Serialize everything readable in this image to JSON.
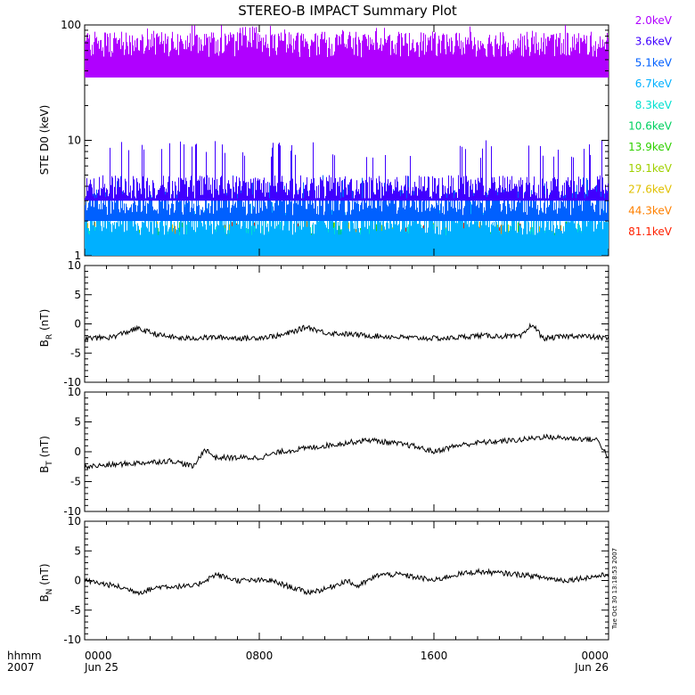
{
  "title": "STEREO-B IMPACT Summary Plot",
  "timestamp": "Tue Oct 30 13:18:53 2007",
  "colors": {
    "background": "#ffffff",
    "axes": "#000000",
    "line": "#000000"
  },
  "chart_data": [
    {
      "type": "line",
      "panel": "ste",
      "ylabel": "STE D0 (keV)",
      "yscale": "log",
      "ylim": [
        1,
        100
      ],
      "yticks": [
        "1",
        "10",
        "100"
      ],
      "legend_placement": "right",
      "series": [
        {
          "name": "2.0keV",
          "color": "#b000ff",
          "mean": 70,
          "min": 35,
          "max": 100
        },
        {
          "name": "3.6keV",
          "color": "#4000ff",
          "mean": 4,
          "min": 3,
          "max": 10
        },
        {
          "name": "5.1keV",
          "color": "#0060ff",
          "mean": 3,
          "min": 2,
          "max": 5
        },
        {
          "name": "6.7keV",
          "color": "#00b0ff",
          "mean": 2,
          "min": 1,
          "max": 3
        },
        {
          "name": "8.3keV",
          "color": "#00e0d0",
          "mean": 1.5,
          "min": 1,
          "max": 2
        },
        {
          "name": "10.6keV",
          "color": "#00d060",
          "mean": 1.3,
          "min": 1,
          "max": 2
        },
        {
          "name": "13.9keV",
          "color": "#30d000",
          "mean": 1.2,
          "min": 1,
          "max": 2
        },
        {
          "name": "19.1keV",
          "color": "#a0d000",
          "mean": 1.1,
          "min": 1,
          "max": 2
        },
        {
          "name": "27.6keV",
          "color": "#e0c000",
          "mean": 1.1,
          "min": 1,
          "max": 2
        },
        {
          "name": "44.3keV",
          "color": "#ff8000",
          "mean": 1.05,
          "min": 1,
          "max": 2
        },
        {
          "name": "81.1keV",
          "color": "#ff2000",
          "mean": 1.0,
          "min": 1,
          "max": 2
        }
      ]
    },
    {
      "type": "line",
      "panel": "br",
      "ylabel": "B",
      "ylabel_sub": "R",
      "ylabel_unit": " (nT)",
      "ylim": [
        -10,
        10
      ],
      "yticks": [
        "10",
        "5",
        "0",
        "-5",
        "-10"
      ],
      "x": [
        0,
        1.2,
        2.4,
        3.5,
        4.5,
        6,
        7.5,
        9,
        10.2,
        11,
        13,
        14,
        15,
        16.5,
        18,
        20,
        20.5,
        21,
        22.5,
        24
      ],
      "values": [
        -2.5,
        -2.3,
        -0.8,
        -2.0,
        -2.5,
        -2.3,
        -2.5,
        -2.0,
        -0.5,
        -1.5,
        -2.0,
        -2.2,
        -2.4,
        -2.5,
        -2.0,
        -2.2,
        0.0,
        -2.5,
        -2.0,
        -2.5
      ]
    },
    {
      "type": "line",
      "panel": "bt",
      "ylabel": "B",
      "ylabel_sub": "T",
      "ylabel_unit": " (nT)",
      "ylim": [
        -10,
        10
      ],
      "yticks": [
        "10",
        "5",
        "0",
        "-5",
        "-10"
      ],
      "x": [
        0,
        2,
        4,
        5,
        5.5,
        6,
        8,
        9,
        11,
        12,
        13,
        14,
        15,
        16,
        17,
        18,
        20,
        21,
        22,
        23.5,
        24
      ],
      "values": [
        -2.5,
        -2.0,
        -1.5,
        -2.5,
        0.5,
        -1.0,
        -1.0,
        0.0,
        1.0,
        1.5,
        2.0,
        1.5,
        1.0,
        0.0,
        1.0,
        1.5,
        2.0,
        2.5,
        2.3,
        2.0,
        -1.0
      ]
    },
    {
      "type": "line",
      "panel": "bn",
      "ylabel": "B",
      "ylabel_sub": "N",
      "ylabel_unit": " (nT)",
      "ylim": [
        -10,
        10
      ],
      "yticks": [
        "10",
        "5",
        "0",
        "-5",
        "-10"
      ],
      "x": [
        0,
        1.5,
        2.5,
        3.5,
        5,
        6,
        7,
        8.5,
        10.2,
        11,
        12,
        12.5,
        13.5,
        14.5,
        16,
        17,
        18,
        20,
        22,
        24
      ],
      "values": [
        0.0,
        -1.0,
        -2.0,
        -1.0,
        -1.0,
        1.0,
        0.0,
        0.0,
        -2.0,
        -1.5,
        0.0,
        -1.0,
        1.0,
        1.0,
        0.0,
        1.0,
        1.5,
        1.0,
        0.0,
        1.0
      ]
    }
  ],
  "xaxis": {
    "xlim": [
      0,
      24
    ],
    "ticks": [
      "0000",
      "0800",
      "1600",
      "0000"
    ],
    "tick_values": [
      0,
      8,
      16,
      24
    ],
    "date_labels": [
      "Jun 25",
      "",
      "",
      "Jun 26"
    ],
    "corner_label_top": "hhmm",
    "corner_label_bottom": "2007"
  }
}
